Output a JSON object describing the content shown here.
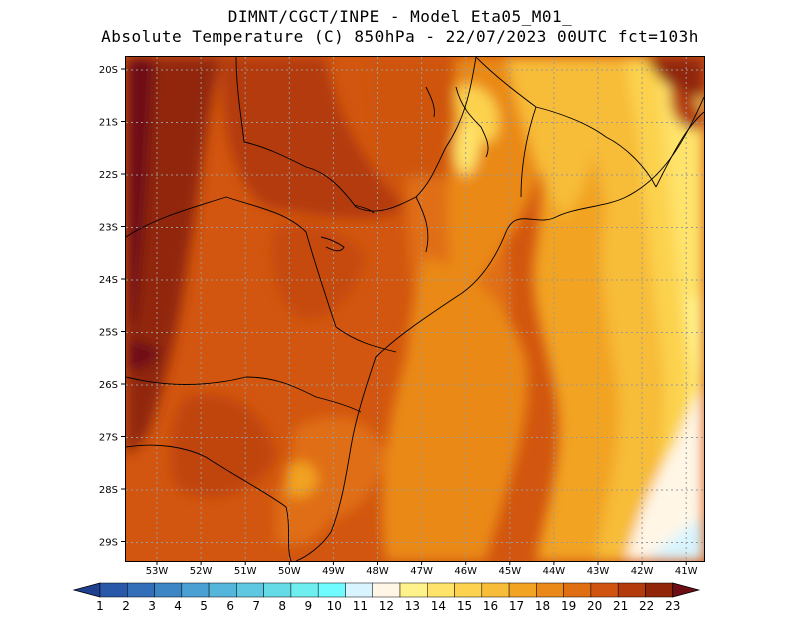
{
  "header": {
    "line1": "DIMNT/CGCT/INPE -  Model Eta05_M01_",
    "line2": "Absolute Temperature (C) 850hPa -  22/07/2023 00UTC fct=103h"
  },
  "map": {
    "lon_labels": [
      "53W",
      "52W",
      "51W",
      "50W",
      "49W",
      "48W",
      "47W",
      "46W",
      "45W",
      "44W",
      "43W",
      "42W",
      "41W"
    ],
    "lat_labels": [
      "20S",
      "21S",
      "22S",
      "23S",
      "24S",
      "25S",
      "26S",
      "27S",
      "28S",
      "29S"
    ]
  },
  "colorbar": {
    "labels": [
      "1",
      "2",
      "3",
      "4",
      "5",
      "6",
      "7",
      "8",
      "9",
      "10",
      "11",
      "12",
      "13",
      "14",
      "15",
      "16",
      "17",
      "18",
      "19",
      "20",
      "21",
      "22",
      "23"
    ],
    "colors": [
      "#1f3f8f",
      "#2a58a8",
      "#336fb8",
      "#3d86c6",
      "#4aa0d2",
      "#55b6dc",
      "#5ec8e2",
      "#66dbe8",
      "#6feef0",
      "#6ffbff",
      "#d8f4ff",
      "#fff6e6",
      "#fff28a",
      "#ffe36a",
      "#fcd24e",
      "#f7bc38",
      "#f2a322",
      "#ea8918",
      "#e06e12",
      "#cf5410",
      "#b33b0c",
      "#912508",
      "#6e0e14"
    ]
  }
}
